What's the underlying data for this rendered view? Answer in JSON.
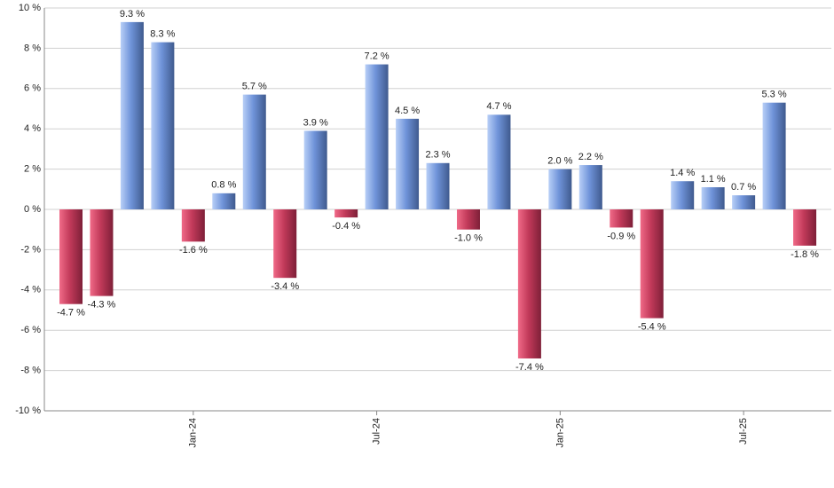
{
  "chart_data": {
    "type": "bar",
    "categories": [
      null,
      null,
      null,
      null,
      "Jan-24",
      null,
      null,
      null,
      null,
      null,
      "Jul-24",
      null,
      null,
      null,
      null,
      null,
      "Jan-25",
      null,
      null,
      null,
      null,
      null,
      "Jul-25",
      null,
      null
    ],
    "values": [
      -4.7,
      -4.3,
      9.3,
      8.3,
      -1.6,
      0.8,
      5.7,
      -3.4,
      3.9,
      -0.4,
      7.2,
      4.5,
      2.3,
      -1.0,
      4.7,
      -7.4,
      2.0,
      2.2,
      -0.9,
      -5.4,
      1.4,
      1.1,
      0.7,
      5.3,
      -1.8
    ],
    "value_labels": [
      "-4.7 %",
      "-4.3 %",
      "9.3 %",
      "8.3 %",
      "-1.6 %",
      "0.8 %",
      "5.7 %",
      "-3.4 %",
      "3.9 %",
      "-0.4 %",
      "7.2 %",
      "4.5 %",
      "2.3 %",
      "-1.0 %",
      "4.7 %",
      "-7.4 %",
      "2.0 %",
      "2.2 %",
      "-0.9 %",
      "-5.4 %",
      "1.4 %",
      "1.1 %",
      "0.7 %",
      "5.3 %",
      "-1.8 %"
    ],
    "positive_color": "#6f93d9",
    "negative_color": "#c23a5a",
    "ylim": [
      -10,
      10
    ],
    "yticks": [
      {
        "value": -10,
        "label": "-10 %"
      },
      {
        "value": -8,
        "label": "-8 %"
      },
      {
        "value": -6,
        "label": "-6 %"
      },
      {
        "value": -4,
        "label": "-4 %"
      },
      {
        "value": -2,
        "label": "-2 %"
      },
      {
        "value": 0,
        "label": "0 %"
      },
      {
        "value": 2,
        "label": "2 %"
      },
      {
        "value": 4,
        "label": "4 %"
      },
      {
        "value": 6,
        "label": "6 %"
      },
      {
        "value": 8,
        "label": "8 %"
      },
      {
        "value": 10,
        "label": "10 %"
      }
    ],
    "grid": true
  }
}
